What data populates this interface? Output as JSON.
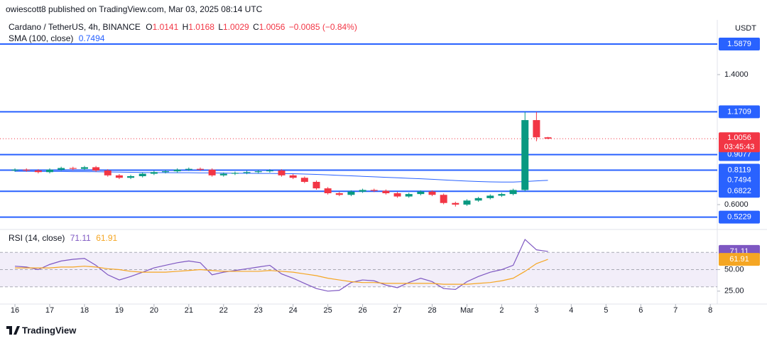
{
  "header": {
    "author_line": "owiescott8 published on TradingView.com, Mar 03, 2025 08:14 UTC",
    "logo": "TradingView"
  },
  "chart_data": [
    {
      "type": "candlestick",
      "title": "Cardano / TetherUS, 4h, BINANCE",
      "ohlc_labels": [
        "O",
        "H",
        "L",
        "C"
      ],
      "change": "−0.0085 (−0.84%)",
      "currency": "USDT",
      "countdown": "03:45:43",
      "up_color": "#089981",
      "down_color": "#f23645",
      "x": [
        16,
        16.33,
        16.67,
        17,
        17.33,
        17.67,
        18,
        18.33,
        18.67,
        19,
        19.33,
        19.67,
        20,
        20.33,
        20.67,
        21,
        21.33,
        21.67,
        22,
        22.33,
        22.67,
        23,
        23.33,
        23.67,
        24,
        24.33,
        24.67,
        25,
        25.33,
        25.67,
        26,
        26.33,
        26.67,
        27,
        27.33,
        27.67,
        28,
        28.33,
        28.67,
        29,
        29.33,
        29.67,
        30,
        30.33,
        30.67,
        31,
        31.33
      ],
      "open": [
        0.81,
        0.815,
        0.81,
        0.8,
        0.815,
        0.825,
        0.82,
        0.83,
        0.81,
        0.78,
        0.765,
        0.775,
        0.79,
        0.8,
        0.805,
        0.815,
        0.82,
        0.815,
        0.78,
        0.79,
        0.795,
        0.8,
        0.805,
        0.81,
        0.78,
        0.765,
        0.74,
        0.7,
        0.67,
        0.66,
        0.68,
        0.69,
        0.685,
        0.67,
        0.65,
        0.665,
        0.68,
        0.66,
        0.61,
        0.6,
        0.625,
        0.64,
        0.655,
        0.665,
        0.69,
        1.12,
        1.0141
      ],
      "high": [
        0.823,
        0.823,
        0.818,
        0.823,
        0.833,
        0.833,
        0.838,
        0.838,
        0.818,
        0.788,
        0.783,
        0.798,
        0.808,
        0.813,
        0.823,
        0.828,
        0.828,
        0.823,
        0.798,
        0.803,
        0.808,
        0.813,
        0.818,
        0.818,
        0.788,
        0.773,
        0.748,
        0.708,
        0.678,
        0.688,
        0.698,
        0.698,
        0.693,
        0.678,
        0.673,
        0.688,
        0.688,
        0.668,
        0.618,
        0.633,
        0.648,
        0.663,
        0.673,
        0.698,
        1.17,
        1.17,
        1.0168
      ],
      "low": [
        0.802,
        0.802,
        0.792,
        0.792,
        0.807,
        0.812,
        0.812,
        0.802,
        0.772,
        0.757,
        0.757,
        0.767,
        0.782,
        0.792,
        0.797,
        0.807,
        0.807,
        0.772,
        0.772,
        0.782,
        0.787,
        0.792,
        0.797,
        0.772,
        0.757,
        0.732,
        0.692,
        0.662,
        0.652,
        0.652,
        0.672,
        0.677,
        0.662,
        0.642,
        0.642,
        0.657,
        0.652,
        0.602,
        0.588,
        0.592,
        0.617,
        0.632,
        0.647,
        0.657,
        0.682,
        0.99,
        1.0029
      ],
      "close": [
        0.815,
        0.81,
        0.8,
        0.815,
        0.825,
        0.82,
        0.83,
        0.81,
        0.78,
        0.765,
        0.775,
        0.79,
        0.8,
        0.805,
        0.815,
        0.82,
        0.815,
        0.78,
        0.79,
        0.795,
        0.8,
        0.805,
        0.81,
        0.78,
        0.765,
        0.74,
        0.7,
        0.67,
        0.66,
        0.68,
        0.69,
        0.685,
        0.67,
        0.65,
        0.665,
        0.68,
        0.66,
        0.61,
        0.6,
        0.625,
        0.64,
        0.655,
        0.665,
        0.69,
        1.12,
        1.0141,
        1.0056
      ],
      "sma": {
        "name": "SMA (100, close)",
        "color": "#2962ff",
        "values": [
          0.805,
          0.805,
          0.804,
          0.804,
          0.804,
          0.803,
          0.803,
          0.802,
          0.801,
          0.8,
          0.799,
          0.798,
          0.797,
          0.797,
          0.796,
          0.796,
          0.795,
          0.795,
          0.794,
          0.793,
          0.793,
          0.792,
          0.792,
          0.791,
          0.79,
          0.788,
          0.786,
          0.783,
          0.78,
          0.777,
          0.774,
          0.771,
          0.768,
          0.765,
          0.762,
          0.759,
          0.756,
          0.752,
          0.748,
          0.745,
          0.742,
          0.74,
          0.739,
          0.739,
          0.742,
          0.746,
          0.7494
        ]
      },
      "levels": {
        "color": "#2962ff",
        "values": [
          1.5879,
          1.1709,
          0.9077,
          0.8119,
          0.6822,
          0.5229
        ]
      },
      "xlim": [
        15.57,
        36.16
      ],
      "ylim": [
        0.4514,
        1.7366
      ],
      "yticks": [
        {
          "value": 0.6,
          "label": "0.6000"
        },
        {
          "value": 1.4,
          "label": "1.4000"
        }
      ],
      "xticks": [
        16,
        17,
        18,
        19,
        20,
        21,
        22,
        23,
        24,
        25,
        26,
        27,
        28,
        {
          "value": 29,
          "label": "Mar"
        },
        {
          "value": 30,
          "label": "2"
        },
        {
          "value": 31,
          "label": "3"
        },
        {
          "value": 32,
          "label": "4"
        },
        {
          "value": 33,
          "label": "5"
        },
        {
          "value": 34,
          "label": "6"
        },
        {
          "value": 35,
          "label": "7"
        },
        {
          "value": 36,
          "label": "8"
        }
      ]
    },
    {
      "type": "rsi",
      "title": "RSI (14, close)",
      "series": [
        {
          "name": "RSI",
          "color": "#7e57c2",
          "values": [
            54,
            53,
            50,
            56,
            60,
            62,
            63,
            55,
            44,
            38,
            42,
            47,
            52,
            55,
            58,
            60,
            58,
            44,
            47,
            49,
            51,
            53,
            55,
            45,
            40,
            34,
            28,
            25,
            26,
            35,
            38,
            37,
            32,
            29,
            35,
            40,
            36,
            28,
            27,
            36,
            42,
            47,
            50,
            55,
            85,
            73,
            71.11
          ]
        },
        {
          "name": "RSI MA",
          "color": "#f5a623",
          "values": [
            52,
            52,
            52,
            52,
            53,
            53,
            54,
            53,
            51,
            50,
            48,
            47,
            47,
            47,
            48,
            49,
            50,
            49,
            48,
            48,
            48,
            48,
            49,
            48,
            47,
            45,
            43,
            40,
            38,
            36,
            35,
            35,
            34,
            34,
            34,
            34,
            34,
            33,
            33,
            33,
            34,
            35,
            37,
            40,
            48,
            57,
            61.91
          ]
        }
      ],
      "band": [
        30,
        70
      ],
      "midline": 50,
      "ylim": [
        10,
        95.8
      ],
      "yticks": [
        {
          "value": 25,
          "label": "25.00"
        },
        {
          "value": 50,
          "label": "50.00"
        }
      ]
    }
  ]
}
